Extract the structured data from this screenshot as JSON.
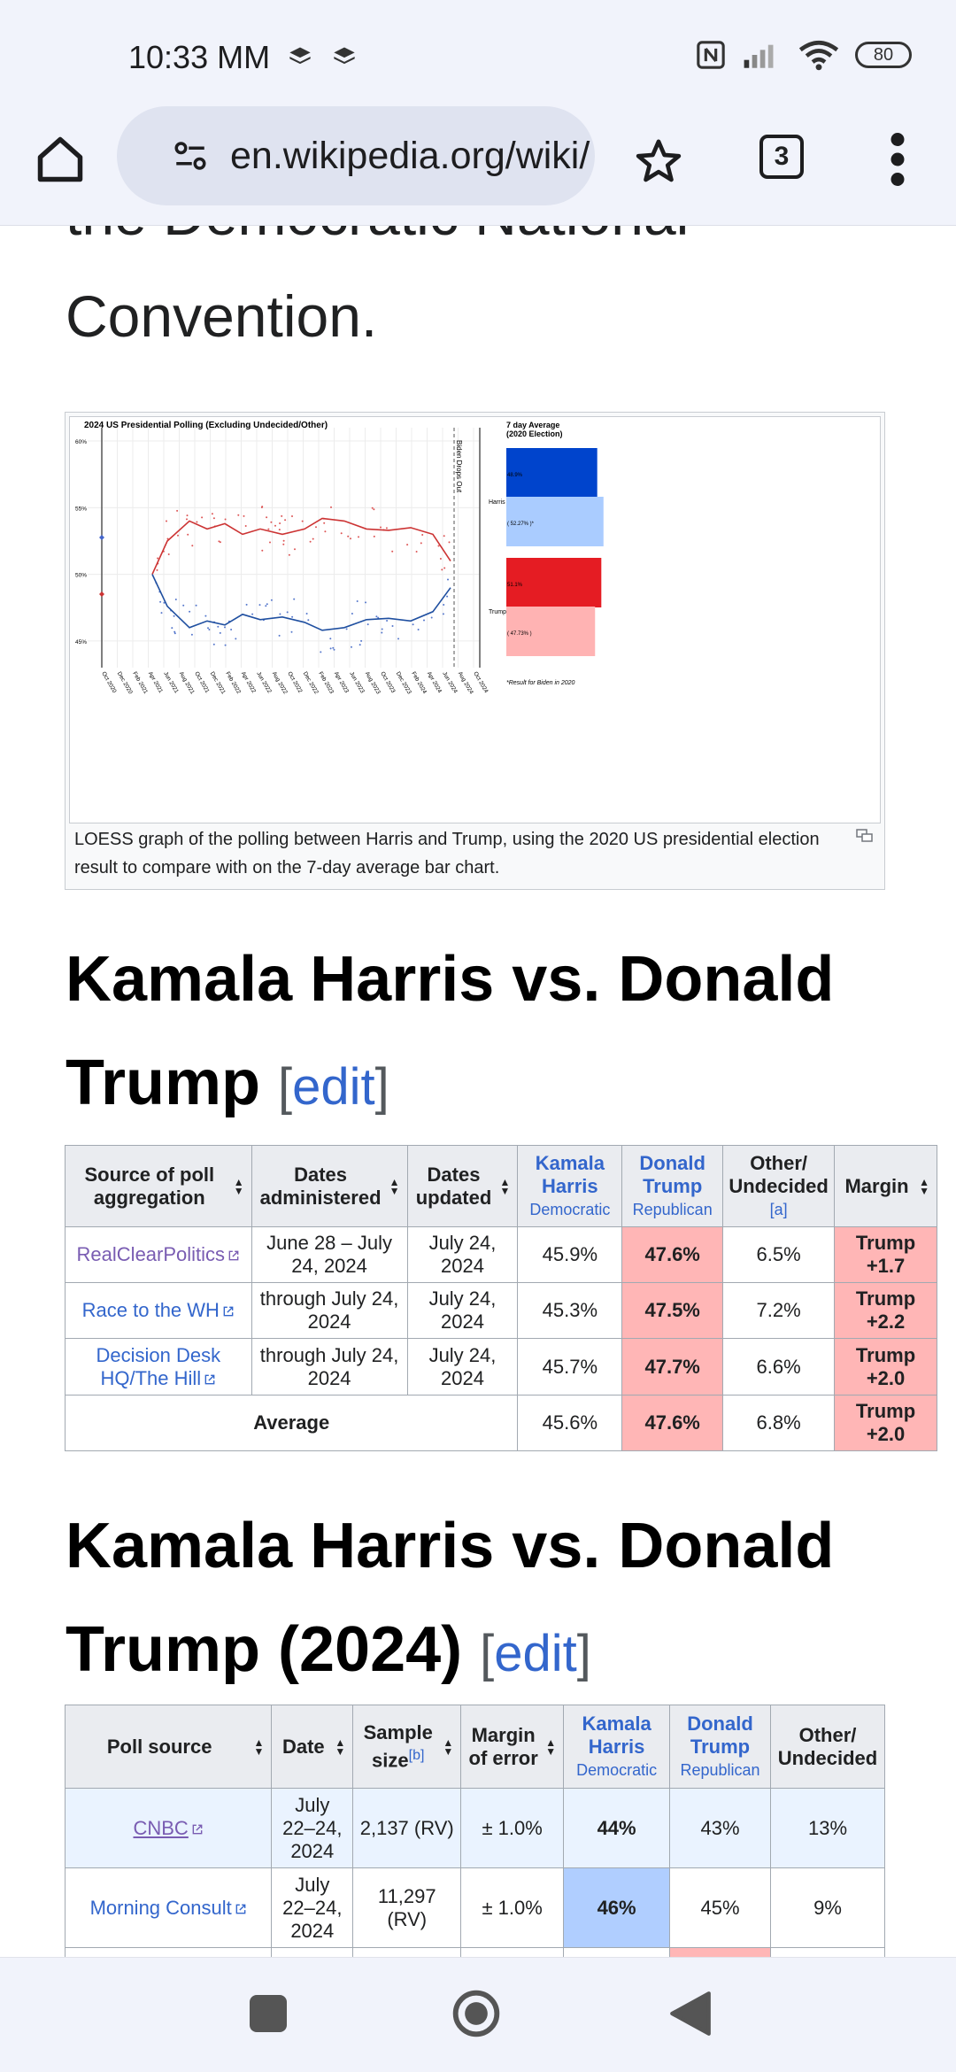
{
  "status_bar": {
    "time": "10:33 MM",
    "battery": "80"
  },
  "browser": {
    "url": "en.wikipedia.org/wiki/",
    "tab_count": "3"
  },
  "article": {
    "intro_line1": "the Democratic National",
    "intro_line2": "Convention.",
    "figure": {
      "chart_title": "2024 US Presidential Polling (Excluding Undecided/Other)",
      "bar_title": "7 day Average (2020 Election)",
      "bar_title_line1": "7 day Average",
      "bar_title_line2": "(2020 Election)",
      "marker_label": "Biden Drops Out",
      "footnote": "*Result for Biden in 2020",
      "caption": "LOESS graph of the polling between Harris and Trump, using the 2020 US presidential election result to compare with on the 7-day average bar chart."
    },
    "section1": {
      "title_line1": "Kamala Harris vs. Donald",
      "title_line2": "Trump",
      "edit": "edit",
      "headers": {
        "source": "Source of poll aggregation",
        "dates_admin": "Dates administered",
        "dates_upd": "Dates updated",
        "harris": "Kamala Harris",
        "harris_party": "Democratic",
        "trump": "Donald Trump",
        "trump_party": "Republican",
        "other": "Other/ Undecided",
        "other_note": "[a]",
        "margin": "Margin"
      },
      "rows": [
        {
          "source": "RealClearPolitics",
          "administered": "June 28 – July 24, 2024",
          "updated": "July 24, 2024",
          "harris": "45.9%",
          "trump": "47.6%",
          "other": "6.5%",
          "margin": "Trump +1.7"
        },
        {
          "source": "Race to the WH",
          "administered": "through July 24, 2024",
          "updated": "July 24, 2024",
          "harris": "45.3%",
          "trump": "47.5%",
          "other": "7.2%",
          "margin": "Trump +2.2"
        },
        {
          "source": "Decision Desk HQ/The Hill",
          "administered": "through July 24, 2024",
          "updated": "July 24, 2024",
          "harris": "45.7%",
          "trump": "47.7%",
          "other": "6.6%",
          "margin": "Trump +2.0"
        }
      ],
      "average": {
        "label": "Average",
        "harris": "45.6%",
        "trump": "47.6%",
        "other": "6.8%",
        "margin": "Trump +2.0"
      }
    },
    "section2": {
      "title_line1": "Kamala Harris vs. Donald",
      "title_line2": "Trump (2024)",
      "edit": "edit",
      "headers": {
        "source": "Poll source",
        "date": "Date",
        "sample": "Sample size",
        "sample_note": "[b]",
        "moe": "Margin of error",
        "harris": "Kamala Harris",
        "harris_party": "Democratic",
        "trump": "Donald Trump",
        "trump_party": "Republican",
        "other": "Other/ Undecided"
      },
      "rows": [
        {
          "source": "CNBC",
          "date": "July 22–24, 2024",
          "sample": "2,137 (RV)",
          "moe": "± 1.0%",
          "harris": "44%",
          "trump": "43%",
          "other": "13%"
        },
        {
          "source": "Morning Consult",
          "date": "July 22–24, 2024",
          "sample": "11,297 (RV)",
          "moe": "± 1.0%",
          "harris": "46%",
          "trump": "45%",
          "other": "9%"
        }
      ]
    }
  },
  "chart_data": {
    "type": "line",
    "title": "2024 US Presidential Polling (Excluding Undecided/Other)",
    "x_ticks": [
      "Oct 2020",
      "Dec 2020",
      "Feb 2021",
      "Apr 2021",
      "Jun 2021",
      "Aug 2021",
      "Oct 2021",
      "Dec 2021",
      "Feb 2022",
      "Apr 2022",
      "Jun 2022",
      "Aug 2022",
      "Oct 2022",
      "Dec 2022",
      "Feb 2023",
      "Apr 2023",
      "Jun 2023",
      "Aug 2023",
      "Oct 2023",
      "Dec 2023",
      "Feb 2024",
      "Apr 2024",
      "Jun 2024",
      "Aug 2024",
      "Oct 2024"
    ],
    "y_ticks": [
      "60%",
      "55%",
      "50%",
      "45%"
    ],
    "ylim": [
      43,
      61
    ],
    "series": [
      {
        "name": "Harris",
        "color": "#0033cc"
      },
      {
        "name": "Trump",
        "color": "#dd2222"
      }
    ],
    "bars": [
      {
        "name": "Harris",
        "label": "48.9%",
        "value": 48.9,
        "color": "#0044cc"
      },
      {
        "name": "Harris",
        "label": "( 52.27% )*",
        "value": 52.27,
        "color": "#aaccff"
      },
      {
        "name": "Trump",
        "label": "51.1%",
        "value": 51.1,
        "color": "#e51c23"
      },
      {
        "name": "Trump",
        "label": "( 47.73% )",
        "value": 47.73,
        "color": "#ffb3b3"
      }
    ]
  }
}
